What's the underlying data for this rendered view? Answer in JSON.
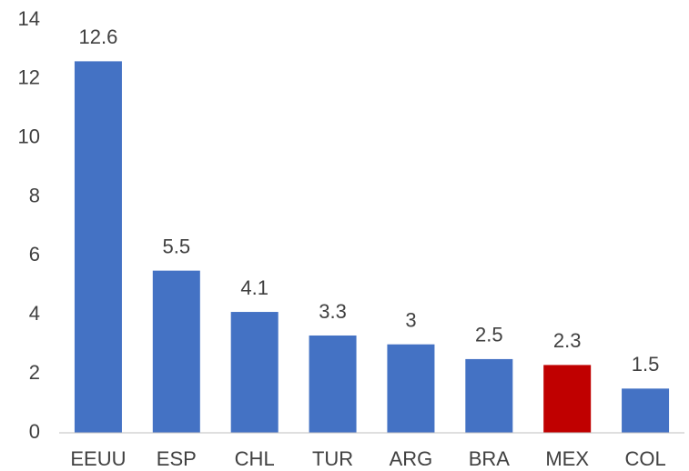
{
  "chart_data": {
    "type": "bar",
    "categories": [
      "EEUU",
      "ESP",
      "CHL",
      "TUR",
      "ARG",
      "BRA",
      "MEX",
      "COL"
    ],
    "values": [
      12.6,
      5.5,
      4.1,
      3.3,
      3,
      2.5,
      2.3,
      1.5
    ],
    "colors": [
      "#4472c4",
      "#4472c4",
      "#4472c4",
      "#4472c4",
      "#4472c4",
      "#4472c4",
      "#c00000",
      "#4472c4"
    ],
    "ylim": [
      0,
      14
    ],
    "yticks": [
      0,
      2,
      4,
      6,
      8,
      10,
      12,
      14
    ],
    "grid": false
  }
}
